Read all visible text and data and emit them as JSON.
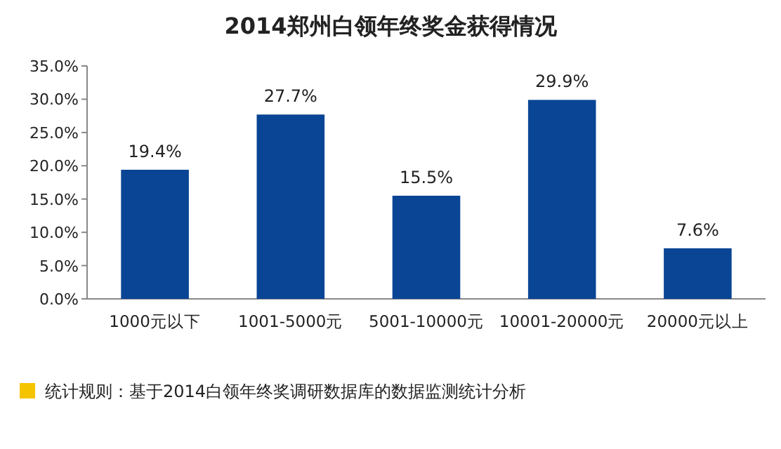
{
  "chart_data": {
    "type": "bar",
    "title": "2014郑州白领年终奖金获得情况",
    "categories": [
      "1000元以下",
      "1001-5000元",
      "5001-10000元",
      "10001-20000元",
      "20000元以上"
    ],
    "values": [
      19.4,
      27.7,
      15.5,
      29.9,
      7.6
    ],
    "value_labels": [
      "19.4%",
      "27.7%",
      "15.5%",
      "29.9%",
      "7.6%"
    ],
    "color": "#0a4595",
    "ylim": [
      0,
      35
    ],
    "yticks": [
      {
        "value": 0,
        "label": "0.0%"
      },
      {
        "value": 5,
        "label": "5.0%"
      },
      {
        "value": 10,
        "label": "10.0%"
      },
      {
        "value": 15,
        "label": "15.0%"
      },
      {
        "value": 20,
        "label": "20.0%"
      },
      {
        "value": 25,
        "label": "25.0%"
      },
      {
        "value": 30,
        "label": "30.0%"
      },
      {
        "value": 35,
        "label": "35.0%"
      }
    ],
    "grid": false,
    "annotations": [
      "统计规则：基于2014白领年终奖调研数据库的数据监测统计分析"
    ]
  }
}
